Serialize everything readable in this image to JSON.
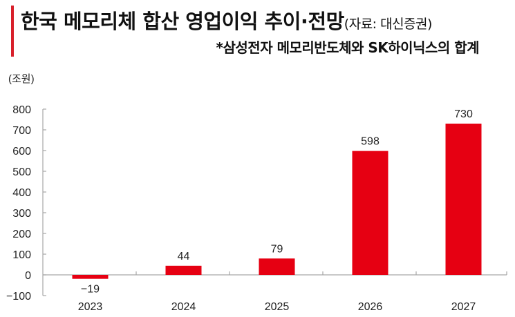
{
  "header": {
    "title": "한국 메모리체 합산 영업이익 추이·전망",
    "source": "(자료: 대신증권)",
    "subtitle": "*삼성전자 메모리반도체와 SK하이닉스의 합계",
    "accent_color": "#d81f2a"
  },
  "chart_data": {
    "type": "bar",
    "title": "한국 메모리체 합산 영업이익 추이·전망",
    "subtitle": "*삼성전자 메모리반도체와 SK하이닉스의 합계",
    "source": "(자료: 대신증권)",
    "xlabel": "",
    "ylabel": "(조원)",
    "categories": [
      "2023",
      "2024",
      "2025",
      "2026",
      "2027"
    ],
    "values": [
      -19,
      44,
      79,
      598,
      730
    ],
    "data_labels": [
      "−19",
      "44",
      "79",
      "598",
      "730"
    ],
    "ylim": [
      -100,
      800
    ],
    "yticks": [
      -100,
      0,
      100,
      200,
      300,
      400,
      500,
      600,
      700,
      800
    ],
    "ytick_labels": [
      "−100",
      "0",
      "100",
      "200",
      "300",
      "400",
      "500",
      "600",
      "700",
      "800"
    ],
    "bar_color": "#e60012",
    "grid": false,
    "legend": null
  }
}
